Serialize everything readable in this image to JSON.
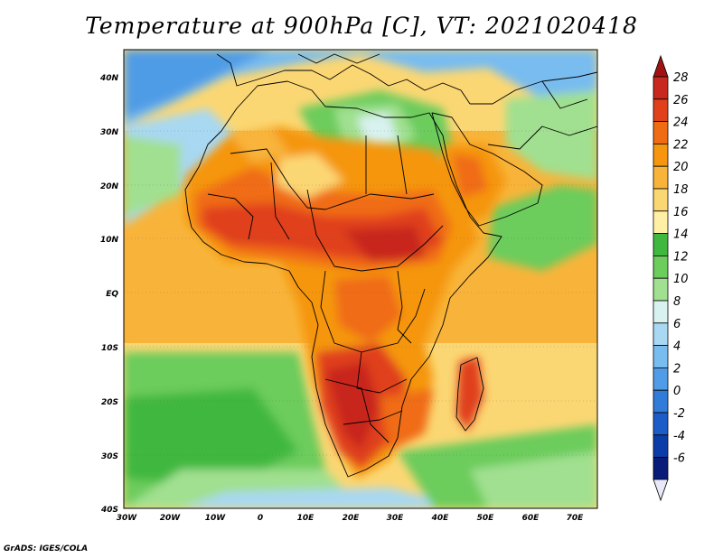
{
  "title": "Temperature at 900hPa [C], VT: 2021020418",
  "footer": "GrADS: IGES/COLA",
  "map": {
    "region": "Africa",
    "lon_range": [
      -30,
      75
    ],
    "lat_range": [
      -40,
      45
    ],
    "lat_ticks": [
      "40N",
      "30N",
      "20N",
      "10N",
      "EQ",
      "10S",
      "20S",
      "30S",
      "40S"
    ],
    "lon_ticks": [
      "30W",
      "20W",
      "10W",
      "0",
      "10E",
      "20E",
      "30E",
      "40E",
      "50E",
      "60E",
      "70E"
    ]
  },
  "colorbar": {
    "labels": [
      "28",
      "26",
      "24",
      "22",
      "20",
      "18",
      "16",
      "14",
      "12",
      "10",
      "8",
      "6",
      "4",
      "2",
      "0",
      "-2",
      "-4",
      "-6"
    ],
    "colors": [
      "#c8281e",
      "#e0401a",
      "#f06c12",
      "#f5960e",
      "#f8b43a",
      "#fbd773",
      "#fff0a5",
      "#40b840",
      "#6ccc5c",
      "#a0e090",
      "#d8f2f0",
      "#a8d8f2",
      "#78bcf0",
      "#509ce6",
      "#307cd8",
      "#1c5cc8",
      "#0c3ca8",
      "#081c78"
    ],
    "top_arrow_color": "#a01212",
    "bottom_arrow_color": "#e8e8f8"
  }
}
